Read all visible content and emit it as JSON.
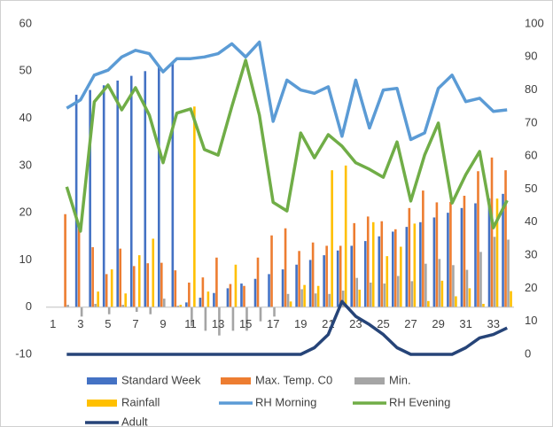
{
  "chart_data": {
    "type": "combo",
    "categories": [
      "1",
      null,
      "3",
      null,
      "5",
      null,
      "7",
      null,
      "9",
      null,
      "11",
      null,
      "13",
      null,
      "15",
      null,
      "17",
      null,
      "19",
      null,
      "21",
      null,
      "23",
      null,
      "25",
      null,
      "27",
      null,
      "29",
      null,
      "31",
      null,
      "33",
      null
    ],
    "ylim": [
      -10,
      60
    ],
    "yticks": [
      -10,
      0,
      10,
      20,
      30,
      40,
      50,
      60
    ],
    "y2lim": [
      0,
      100
    ],
    "y2ticks": [
      0,
      10,
      20,
      30,
      40,
      50,
      60,
      70,
      80,
      90,
      100
    ],
    "grid": false,
    "legend": "bottom",
    "series": [
      {
        "name": "Standard Week",
        "type": "bar",
        "color": "#4472c4",
        "values": [
          null,
          null,
          45,
          46,
          47,
          48,
          49,
          50,
          51,
          52,
          1,
          2,
          3,
          4,
          5,
          6,
          7,
          8,
          9,
          10,
          11,
          12,
          13,
          14,
          15,
          16,
          17,
          18,
          19,
          20,
          21,
          22,
          23,
          24
        ]
      },
      {
        "name": "Max. Temp. C0",
        "type": "bar",
        "color": "#ed7d31",
        "values": [
          null,
          19.7,
          16.8,
          12.7,
          7,
          12.4,
          8.7,
          9.3,
          9.4,
          7.8,
          5.2,
          6.3,
          10.5,
          4.9,
          4.5,
          10.5,
          15.2,
          16.7,
          11.9,
          13.7,
          13,
          13,
          17.8,
          19.2,
          18.2,
          16.5,
          21,
          24.7,
          22.2,
          22.3,
          23.6,
          28.8,
          31.7,
          29
        ]
      },
      {
        "name": "Min.",
        "type": "bar",
        "color": "#a5a5a5",
        "values": [
          null,
          0.5,
          -2,
          0.7,
          -1.5,
          0.5,
          -1,
          -1.5,
          1.8,
          0.3,
          -4,
          -5,
          -6,
          -5,
          -5,
          -3,
          -2,
          2.8,
          3.8,
          2.9,
          2.8,
          3.5,
          6.2,
          5.2,
          5,
          6.6,
          5.5,
          9.2,
          10.2,
          8.9,
          7.9,
          11.7,
          14.9,
          14.3
        ]
      },
      {
        "name": "Rainfall",
        "type": "bar",
        "color": "#ffc000",
        "values": [
          null,
          0,
          0,
          3.3,
          8,
          2.9,
          11,
          14.5,
          0,
          0.5,
          42.5,
          3.3,
          0,
          9,
          0,
          0,
          0,
          1.2,
          4.7,
          4.5,
          29,
          30,
          3.7,
          18,
          10.8,
          12.8,
          17.7,
          1.3,
          5.6,
          2.3,
          4,
          0.7,
          23,
          3.4
        ]
      },
      {
        "name": "RH Morning",
        "type": "line",
        "axis": "y2",
        "color": "#5b9bd5",
        "values": [
          null,
          74.5,
          77,
          84.5,
          86,
          90,
          92,
          91,
          85.5,
          89.5,
          89.5,
          90,
          91,
          94,
          90,
          94.5,
          70.5,
          83,
          80,
          79,
          81,
          66,
          83,
          68.5,
          80,
          80.5,
          65,
          67,
          80.5,
          84.5,
          76.5,
          77.5,
          73.5,
          74
        ]
      },
      {
        "name": "RH Evening",
        "type": "line",
        "axis": "y2",
        "color": "#70ad47",
        "values": [
          null,
          50.7,
          37.3,
          76.4,
          81.5,
          74,
          80.7,
          72.4,
          58,
          73,
          74.3,
          62,
          60.3,
          75,
          89,
          72.4,
          46,
          43.4,
          67,
          59.5,
          66.5,
          63,
          58,
          56,
          53.6,
          64.3,
          46.4,
          60.3,
          70,
          45.8,
          54.4,
          61.4,
          38.3,
          46.6
        ]
      },
      {
        "name": "Adult",
        "type": "line",
        "axis": "y2",
        "color": "#264478",
        "values": [
          null,
          0,
          0,
          0,
          0,
          0,
          0,
          0,
          0,
          0,
          0,
          0,
          0,
          0,
          0,
          0,
          0,
          0,
          0,
          2,
          6,
          16,
          11.5,
          9,
          6,
          2,
          0,
          0,
          0,
          0,
          2,
          5,
          6,
          8
        ]
      }
    ]
  }
}
